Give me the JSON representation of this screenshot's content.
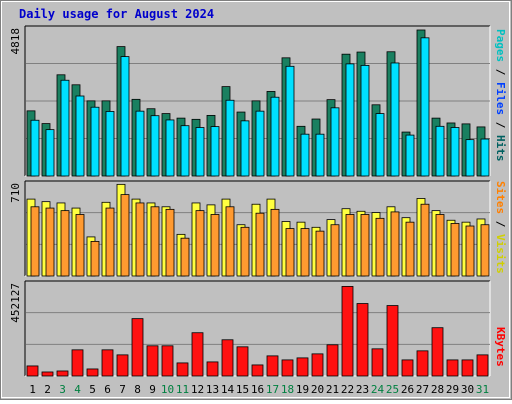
{
  "title": "Daily usage for August 2024",
  "colors": {
    "title": "#0000cc",
    "pages": "#00c0c0",
    "files": "#0040ff",
    "hits": "#006060",
    "sites": "#ff8000",
    "visits": "#d0d000",
    "kbytes": "#ff0000",
    "plot_bg": "#c0c0c0",
    "border": "#7f7f7f",
    "weekend_day": "#008040"
  },
  "chart_data": [
    {
      "type": "bar",
      "panel": "hits-files-pages",
      "y_label_text": "4818",
      "ylim": [
        0,
        4818
      ],
      "categories": [
        "1",
        "2",
        "3",
        "4",
        "5",
        "6",
        "7",
        "8",
        "9",
        "10",
        "11",
        "12",
        "13",
        "14",
        "15",
        "16",
        "17",
        "18",
        "19",
        "20",
        "21",
        "22",
        "23",
        "24",
        "25",
        "26",
        "27",
        "28",
        "29",
        "30",
        "31"
      ],
      "legend": [
        {
          "text": "Pages",
          "color": "#00c0c0"
        },
        {
          "text": "/",
          "color": "#000000"
        },
        {
          "text": "Files",
          "color": "#0040ff"
        },
        {
          "text": "/",
          "color": "#000000"
        },
        {
          "text": "Hits",
          "color": "#006060"
        }
      ],
      "series": [
        {
          "name": "Hits",
          "color": "#1a8060",
          "values": [
            2150,
            1730,
            3340,
            3010,
            2480,
            2480,
            4270,
            2530,
            2220,
            2060,
            1910,
            1870,
            2000,
            2950,
            2110,
            2480,
            2790,
            3900,
            1640,
            1880,
            2520,
            4020,
            4090,
            2350,
            4100,
            1450,
            4818,
            1910,
            1750,
            1720,
            1620
          ]
        },
        {
          "name": "Pages",
          "color": "#00e0ff",
          "values": [
            1840,
            1530,
            3160,
            2640,
            2270,
            2130,
            3940,
            2140,
            1990,
            1850,
            1660,
            1600,
            1630,
            2500,
            1820,
            2140,
            2600,
            3620,
            1380,
            1380,
            2250,
            3700,
            3650,
            2060,
            3730,
            1350,
            4560,
            1640,
            1600,
            1200,
            1220
          ]
        }
      ]
    },
    {
      "type": "bar",
      "panel": "visits-sites",
      "y_label_text": "710",
      "ylim": [
        0,
        710
      ],
      "categories": [
        "1",
        "2",
        "3",
        "4",
        "5",
        "6",
        "7",
        "8",
        "9",
        "10",
        "11",
        "12",
        "13",
        "14",
        "15",
        "16",
        "17",
        "18",
        "19",
        "20",
        "21",
        "22",
        "23",
        "24",
        "25",
        "26",
        "27",
        "28",
        "29",
        "30",
        "31"
      ],
      "legend": [
        {
          "text": "Sites",
          "color": "#ff8000"
        },
        {
          "text": "/",
          "color": "#000000"
        },
        {
          "text": "Visits",
          "color": "#d0d000"
        }
      ],
      "series": [
        {
          "name": "Visits",
          "color": "#ffff40",
          "values": [
            600,
            580,
            570,
            530,
            305,
            575,
            715,
            600,
            570,
            540,
            325,
            570,
            555,
            600,
            400,
            560,
            600,
            425,
            420,
            380,
            440,
            525,
            505,
            495,
            540,
            455,
            605,
            510,
            435,
            420,
            445
          ]
        },
        {
          "name": "Sites",
          "color": "#ff9a30",
          "values": [
            540,
            530,
            510,
            480,
            270,
            530,
            635,
            570,
            540,
            520,
            295,
            510,
            480,
            540,
            380,
            490,
            520,
            370,
            370,
            350,
            400,
            480,
            480,
            450,
            500,
            420,
            560,
            480,
            410,
            390,
            400
          ]
        }
      ]
    },
    {
      "type": "bar",
      "panel": "kbytes",
      "y_label_text": "452127",
      "ylim": [
        0,
        452127
      ],
      "categories": [
        "1",
        "2",
        "3",
        "4",
        "5",
        "6",
        "7",
        "8",
        "9",
        "10",
        "11",
        "12",
        "13",
        "14",
        "15",
        "16",
        "17",
        "18",
        "19",
        "20",
        "21",
        "22",
        "23",
        "24",
        "25",
        "26",
        "27",
        "28",
        "29",
        "30",
        "31"
      ],
      "legend": [
        {
          "text": "KBytes",
          "color": "#ff0000"
        }
      ],
      "series": [
        {
          "name": "KBytes",
          "color": "#ff1010",
          "values": [
            50000,
            20000,
            25000,
            130000,
            35000,
            130000,
            105000,
            285000,
            150000,
            150000,
            65000,
            215000,
            70000,
            180000,
            145000,
            55000,
            100000,
            80000,
            90000,
            110000,
            155000,
            445000,
            360000,
            135000,
            350000,
            80000,
            125000,
            240000,
            80000,
            80000,
            105000
          ]
        }
      ]
    }
  ],
  "x_axis_days": [
    {
      "label": "1",
      "weekend": false
    },
    {
      "label": "2",
      "weekend": false
    },
    {
      "label": "3",
      "weekend": true
    },
    {
      "label": "4",
      "weekend": true
    },
    {
      "label": "5",
      "weekend": false
    },
    {
      "label": "6",
      "weekend": false
    },
    {
      "label": "7",
      "weekend": false
    },
    {
      "label": "8",
      "weekend": false
    },
    {
      "label": "9",
      "weekend": false
    },
    {
      "label": "10",
      "weekend": true
    },
    {
      "label": "11",
      "weekend": true
    },
    {
      "label": "12",
      "weekend": false
    },
    {
      "label": "13",
      "weekend": false
    },
    {
      "label": "14",
      "weekend": false
    },
    {
      "label": "15",
      "weekend": false
    },
    {
      "label": "16",
      "weekend": false
    },
    {
      "label": "17",
      "weekend": true
    },
    {
      "label": "18",
      "weekend": true
    },
    {
      "label": "19",
      "weekend": false
    },
    {
      "label": "20",
      "weekend": false
    },
    {
      "label": "21",
      "weekend": false
    },
    {
      "label": "22",
      "weekend": false
    },
    {
      "label": "23",
      "weekend": false
    },
    {
      "label": "24",
      "weekend": true
    },
    {
      "label": "25",
      "weekend": true
    },
    {
      "label": "26",
      "weekend": false
    },
    {
      "label": "27",
      "weekend": false
    },
    {
      "label": "28",
      "weekend": false
    },
    {
      "label": "29",
      "weekend": false
    },
    {
      "label": "30",
      "weekend": false
    },
    {
      "label": "31",
      "weekend": true
    }
  ]
}
